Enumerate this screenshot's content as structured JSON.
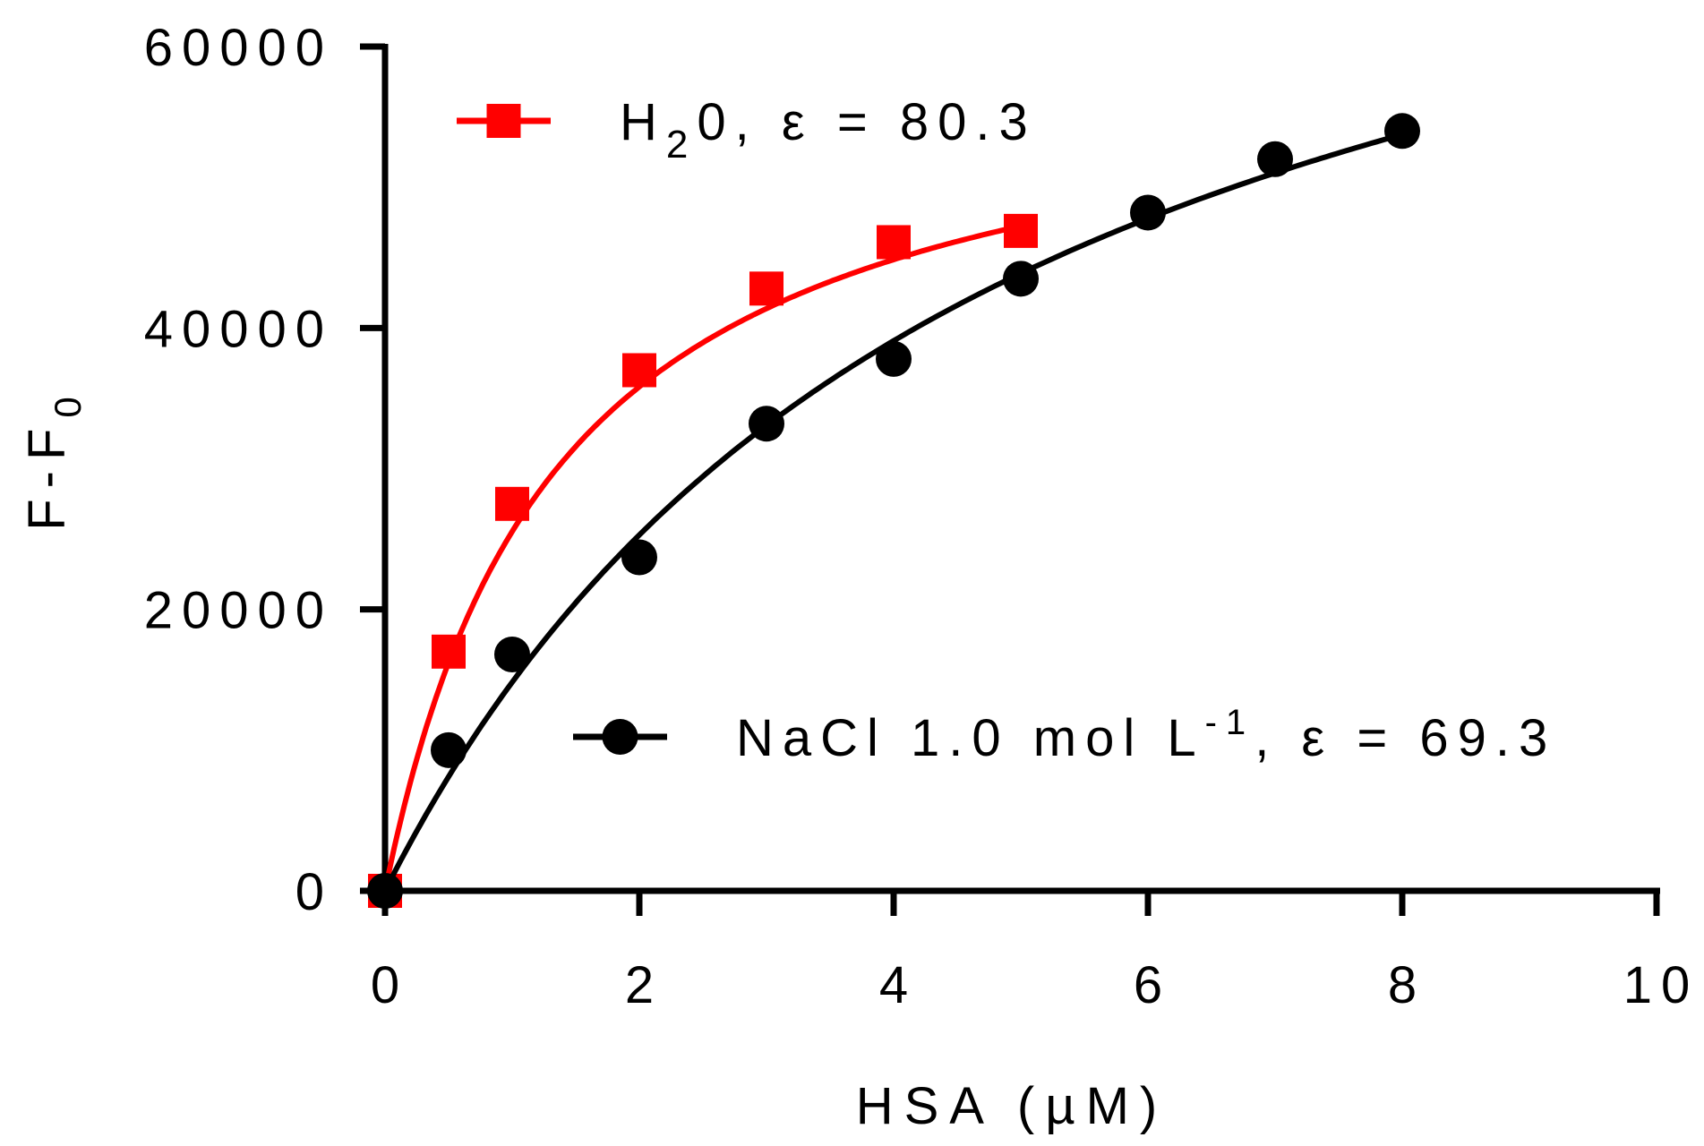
{
  "chart_data": {
    "type": "scatter",
    "xlabel": "HSA (µM)",
    "ylabel": {
      "main": "F-F",
      "subscript": "0"
    },
    "xlim": [
      0,
      10
    ],
    "ylim": [
      0,
      60000
    ],
    "xticks": [
      0,
      2,
      4,
      6,
      8,
      10
    ],
    "yticks": [
      0,
      20000,
      40000,
      60000
    ],
    "xtick_labels": [
      "0",
      "2",
      "4",
      "6",
      "8",
      "10"
    ],
    "ytick_labels": [
      "0",
      "20000",
      "40000",
      "60000"
    ],
    "grid": false,
    "legend_position": "inside",
    "series": [
      {
        "name": "H20, ε = 80.3",
        "name_parts": {
          "pre": "H",
          "sub": "2",
          "post": "0, ε = 80.3"
        },
        "color": "#ff0000",
        "marker": "square",
        "x": [
          0,
          0.5,
          1,
          2,
          3,
          4,
          5
        ],
        "y": [
          0,
          17000,
          27500,
          37000,
          42800,
          46100,
          46900
        ],
        "fit": {
          "model": "hyperbolic",
          "bmax": 60000,
          "kd": 1.35
        }
      },
      {
        "name": "NaCl 1.0 mol L-1, ε = 69.3",
        "name_parts": {
          "pre": "NaCl 1.0 mol L",
          "sup": "-1",
          "post": ", ε = 69.3"
        },
        "color": "#000000",
        "marker": "circle",
        "x": [
          0,
          0.5,
          1,
          2,
          3,
          4,
          5,
          6,
          7,
          8
        ],
        "y": [
          0,
          10000,
          16800,
          23700,
          33200,
          37800,
          43500,
          48200,
          52000,
          54000
        ],
        "fit": {
          "model": "hyperbolic",
          "bmax": 86000,
          "kd": 4.8
        }
      }
    ]
  }
}
